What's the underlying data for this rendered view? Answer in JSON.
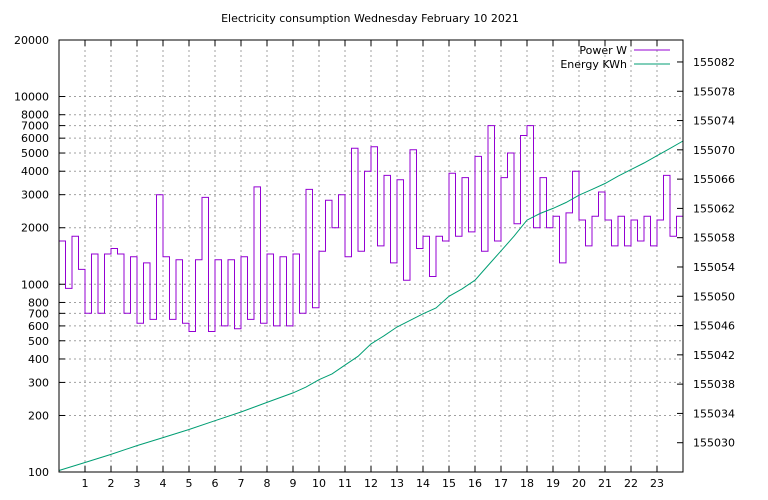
{
  "chart_data": {
    "type": "line",
    "title": "Electricity consumption Wednesday February 10 2021",
    "xlabel": "",
    "ylabel": "",
    "y2label": "",
    "x_range": [
      0,
      24
    ],
    "x_ticks": [
      1,
      2,
      3,
      4,
      5,
      6,
      7,
      8,
      9,
      10,
      11,
      12,
      13,
      14,
      15,
      16,
      17,
      18,
      19,
      20,
      21,
      22,
      23
    ],
    "y_scale": "log",
    "y_range": [
      100,
      20000
    ],
    "y_ticks": [
      100,
      200,
      300,
      400,
      500,
      600,
      700,
      800,
      1000,
      2000,
      3000,
      4000,
      5000,
      6000,
      7000,
      8000,
      10000,
      20000
    ],
    "y2_range": [
      155026,
      155085
    ],
    "y2_ticks": [
      155030,
      155034,
      155038,
      155042,
      155046,
      155050,
      155054,
      155058,
      155062,
      155066,
      155070,
      155074,
      155078,
      155082
    ],
    "grid": true,
    "legend_position": "top-right",
    "series": [
      {
        "name": "Power W",
        "axis": "y1",
        "color": "#9400d3",
        "x": [
          0,
          0.25,
          0.5,
          0.75,
          1,
          1.25,
          1.5,
          1.75,
          2,
          2.25,
          2.5,
          2.75,
          3,
          3.25,
          3.5,
          3.75,
          4,
          4.25,
          4.5,
          4.75,
          5,
          5.25,
          5.5,
          5.75,
          6,
          6.25,
          6.5,
          6.75,
          7,
          7.25,
          7.5,
          7.75,
          8,
          8.25,
          8.5,
          8.75,
          9,
          9.25,
          9.5,
          9.75,
          10,
          10.25,
          10.5,
          10.75,
          11,
          11.25,
          11.5,
          11.75,
          12,
          12.25,
          12.5,
          12.75,
          13,
          13.25,
          13.5,
          13.75,
          14,
          14.25,
          14.5,
          14.75,
          15,
          15.25,
          15.5,
          15.75,
          16,
          16.25,
          16.5,
          16.75,
          17,
          17.25,
          17.5,
          17.75,
          18,
          18.25,
          18.5,
          18.75,
          19,
          19.25,
          19.5,
          19.75,
          20,
          20.25,
          20.5,
          20.75,
          21,
          21.25,
          21.5,
          21.75,
          22,
          22.25,
          22.5,
          22.75,
          23,
          23.25,
          23.5,
          23.75,
          24
        ],
        "y": [
          1700,
          950,
          1800,
          1200,
          700,
          1450,
          700,
          1450,
          1550,
          1450,
          700,
          1400,
          620,
          1300,
          650,
          3000,
          1400,
          650,
          1350,
          620,
          560,
          1350,
          2900,
          560,
          1350,
          600,
          1350,
          580,
          1400,
          650,
          3300,
          620,
          1450,
          600,
          1400,
          600,
          1450,
          700,
          3200,
          750,
          1500,
          2800,
          2000,
          3000,
          1400,
          5300,
          1500,
          4000,
          5400,
          1600,
          3800,
          1300,
          3600,
          1050,
          5200,
          1550,
          1800,
          1100,
          1800,
          1700,
          3900,
          1800,
          3700,
          1900,
          4800,
          1500,
          7000,
          1700,
          3700,
          5000,
          2100,
          6200,
          7000,
          2000,
          3700,
          2000,
          2300,
          1300,
          2400,
          4000,
          2200,
          1600,
          2300,
          3100,
          2200,
          1600,
          2300,
          1600,
          2200,
          1700,
          2300,
          1600,
          2200,
          3800,
          1800,
          2300,
          2100
        ]
      },
      {
        "name": "Energy KWh",
        "axis": "y2",
        "color": "#009e73",
        "x": [
          0,
          1,
          2,
          3,
          4,
          5,
          6,
          7,
          8,
          9,
          9.5,
          10,
          10.5,
          11,
          11.5,
          12,
          12.5,
          13,
          13.5,
          14,
          14.5,
          15,
          15.5,
          16,
          16.5,
          17,
          17.5,
          18,
          18.5,
          19,
          19.5,
          20,
          20.5,
          21,
          21.5,
          22,
          22.5,
          23,
          23.5,
          24
        ],
        "y": [
          155026.2,
          155027.3,
          155028.4,
          155029.6,
          155030.7,
          155031.8,
          155033,
          155034.2,
          155035.5,
          155036.8,
          155037.6,
          155038.6,
          155039.4,
          155040.6,
          155041.8,
          155043.5,
          155044.6,
          155045.8,
          155046.7,
          155047.6,
          155048.4,
          155050,
          155051,
          155052.2,
          155054.2,
          155056.2,
          155058.2,
          155060.4,
          155061.3,
          155062,
          155062.8,
          155063.8,
          155064.6,
          155065.4,
          155066.4,
          155067.3,
          155068.2,
          155069.2,
          155070.2,
          155071.2
        ]
      }
    ]
  }
}
